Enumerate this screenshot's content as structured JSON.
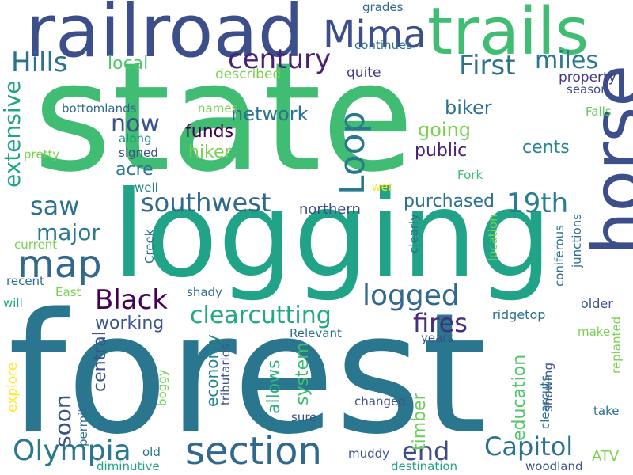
{
  "words": [
    {
      "text": "state",
      "color": "#40bd72"
    },
    {
      "text": "forest",
      "color": "#2a768e"
    },
    {
      "text": "logging",
      "color": "#20a386"
    },
    {
      "text": "railroad",
      "color": "#3c4f8a"
    },
    {
      "text": "trails",
      "color": "#40bd72"
    },
    {
      "text": "horse",
      "color": "#3c4f8a"
    },
    {
      "text": "Mima",
      "color": "#3c4f8a"
    },
    {
      "text": "section",
      "color": "#31688e"
    },
    {
      "text": "map",
      "color": "#31688e"
    },
    {
      "text": "Olympia",
      "color": "#2a788e"
    },
    {
      "text": "century",
      "color": "#482173"
    },
    {
      "text": "Hills",
      "color": "#2c718e"
    },
    {
      "text": "First",
      "color": "#2c718e"
    },
    {
      "text": "miles",
      "color": "#2a788e"
    },
    {
      "text": "Loop",
      "color": "#2a788e"
    },
    {
      "text": "Black",
      "color": "#440154"
    },
    {
      "text": "clearcutting",
      "color": "#22a884"
    },
    {
      "text": "southwest",
      "color": "#31688e"
    },
    {
      "text": "19th",
      "color": "#287d8e"
    },
    {
      "text": "saw",
      "color": "#2c718e"
    },
    {
      "text": "extensive",
      "color": "#20a386"
    },
    {
      "text": "logged",
      "color": "#31688e"
    },
    {
      "text": "fires",
      "color": "#472d7b"
    },
    {
      "text": "Capitol",
      "color": "#2c718e"
    },
    {
      "text": "end",
      "color": "#3e4c8a"
    },
    {
      "text": "soon",
      "color": "#3b528b"
    },
    {
      "text": "major",
      "color": "#2a788e"
    },
    {
      "text": "now",
      "color": "#3b528b"
    },
    {
      "text": "network",
      "color": "#2c718e"
    },
    {
      "text": "biker",
      "color": "#2c728e"
    },
    {
      "text": "going",
      "color": "#7ad151"
    },
    {
      "text": "public",
      "color": "#482475"
    },
    {
      "text": "cents",
      "color": "#25858e"
    },
    {
      "text": "funds",
      "color": "#440154"
    },
    {
      "text": "hiker",
      "color": "#7ad151"
    },
    {
      "text": "acre",
      "color": "#2a788e"
    },
    {
      "text": "purchased",
      "color": "#2c718e"
    },
    {
      "text": "northern",
      "color": "#3e4c8a"
    },
    {
      "text": "working",
      "color": "#3b528b"
    },
    {
      "text": "central",
      "color": "#3b528b"
    },
    {
      "text": "economy",
      "color": "#25838e"
    },
    {
      "text": "allows",
      "color": "#2db27d"
    },
    {
      "text": "system",
      "color": "#3dbc74"
    },
    {
      "text": "education",
      "color": "#52c569"
    },
    {
      "text": "timber",
      "color": "#6ccd5a"
    },
    {
      "text": "local",
      "color": "#52c569"
    },
    {
      "text": "described",
      "color": "#7ad151"
    },
    {
      "text": "quite",
      "color": "#443983"
    },
    {
      "text": "property",
      "color": "#443983"
    },
    {
      "text": "season",
      "color": "#3e4c8a"
    },
    {
      "text": "continues",
      "color": "#2c718e"
    },
    {
      "text": "grades",
      "color": "#31688e"
    },
    {
      "text": "bottomlands",
      "color": "#31688e"
    },
    {
      "text": "names",
      "color": "#7ad151"
    },
    {
      "text": "along",
      "color": "#21918c"
    },
    {
      "text": "signed",
      "color": "#3b528b"
    },
    {
      "text": "pretty",
      "color": "#7ad151"
    },
    {
      "text": "well",
      "color": "#25838e"
    },
    {
      "text": "wet",
      "color": "#fde725"
    },
    {
      "text": "Fork",
      "color": "#3dbc74"
    },
    {
      "text": "Falls",
      "color": "#5ec962"
    },
    {
      "text": "current",
      "color": "#7ad151"
    },
    {
      "text": "Creek",
      "color": "#2c718e"
    },
    {
      "text": "clearly",
      "color": "#2c718e"
    },
    {
      "text": "location",
      "color": "#7ad151"
    },
    {
      "text": "junctions",
      "color": "#2c718e"
    },
    {
      "text": "coniferous",
      "color": "#2c718e"
    },
    {
      "text": "recent",
      "color": "#2c718e"
    },
    {
      "text": "East",
      "color": "#7ad151"
    },
    {
      "text": "shady",
      "color": "#2c718e"
    },
    {
      "text": "will",
      "color": "#22a884"
    },
    {
      "text": "older",
      "color": "#3b528b"
    },
    {
      "text": "ridgetop",
      "color": "#2c718e"
    },
    {
      "text": "Relevant",
      "color": "#2c718e"
    },
    {
      "text": "years",
      "color": "#3b528b"
    },
    {
      "text": "make",
      "color": "#7ad151"
    },
    {
      "text": "replanted",
      "color": "#7ad151"
    },
    {
      "text": "explore",
      "color": "#fde725"
    },
    {
      "text": "boggy",
      "color": "#7ad151"
    },
    {
      "text": "tributaries",
      "color": "#3b528b"
    },
    {
      "text": "permitted",
      "color": "#2c718e"
    },
    {
      "text": "sure",
      "color": "#3b528b"
    },
    {
      "text": "changed",
      "color": "#3b528b"
    },
    {
      "text": "showing",
      "color": "#3b528b"
    },
    {
      "text": "clearcuts",
      "color": "#2c718e"
    },
    {
      "text": "take",
      "color": "#2c718e"
    },
    {
      "text": "old",
      "color": "#2c718e"
    },
    {
      "text": "muddy",
      "color": "#3b528b"
    },
    {
      "text": "ATV",
      "color": "#7ad151"
    },
    {
      "text": "diminutive",
      "color": "#20a386"
    },
    {
      "text": "destination",
      "color": "#20a386"
    },
    {
      "text": "woodland",
      "color": "#3b528b"
    }
  ]
}
